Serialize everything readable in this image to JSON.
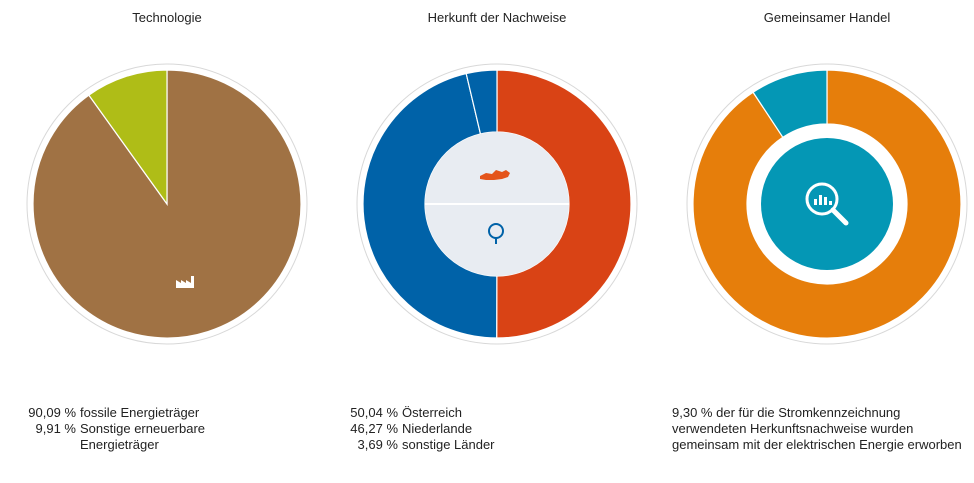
{
  "chart_data": [
    {
      "type": "pie",
      "title": "Technologie",
      "categories": [
        "fossile Energieträger",
        "Sonstige erneuerbare Energieträger"
      ],
      "values": [
        90.09,
        9.91
      ],
      "value_labels": [
        "90,09 %",
        "9,91 %"
      ],
      "colors": [
        "#a07244",
        "#afbd17"
      ]
    },
    {
      "type": "donut",
      "title": "Herkunft der Nachweise",
      "categories": [
        "Österreich",
        "Niederlande",
        "sonstige Länder"
      ],
      "values": [
        50.04,
        46.27,
        3.69
      ],
      "value_labels": [
        "50,04 %",
        "46,27 %",
        "3,69 %"
      ],
      "colors": [
        "#d94315",
        "#0062a8",
        "#0062a8"
      ]
    },
    {
      "type": "donut",
      "title": "Gemeinsamer Handel",
      "categories": [
        null,
        "der für die Stromkennzeichnung verwendeten Herkunftsnachweise wurden gemeinsam mit der elektrischen Energie erworben"
      ],
      "values": [
        90.7,
        9.3
      ],
      "value_labels": [
        null,
        "9,30 %"
      ],
      "colors": [
        "#e67e0b",
        "#0497b5"
      ]
    }
  ]
}
